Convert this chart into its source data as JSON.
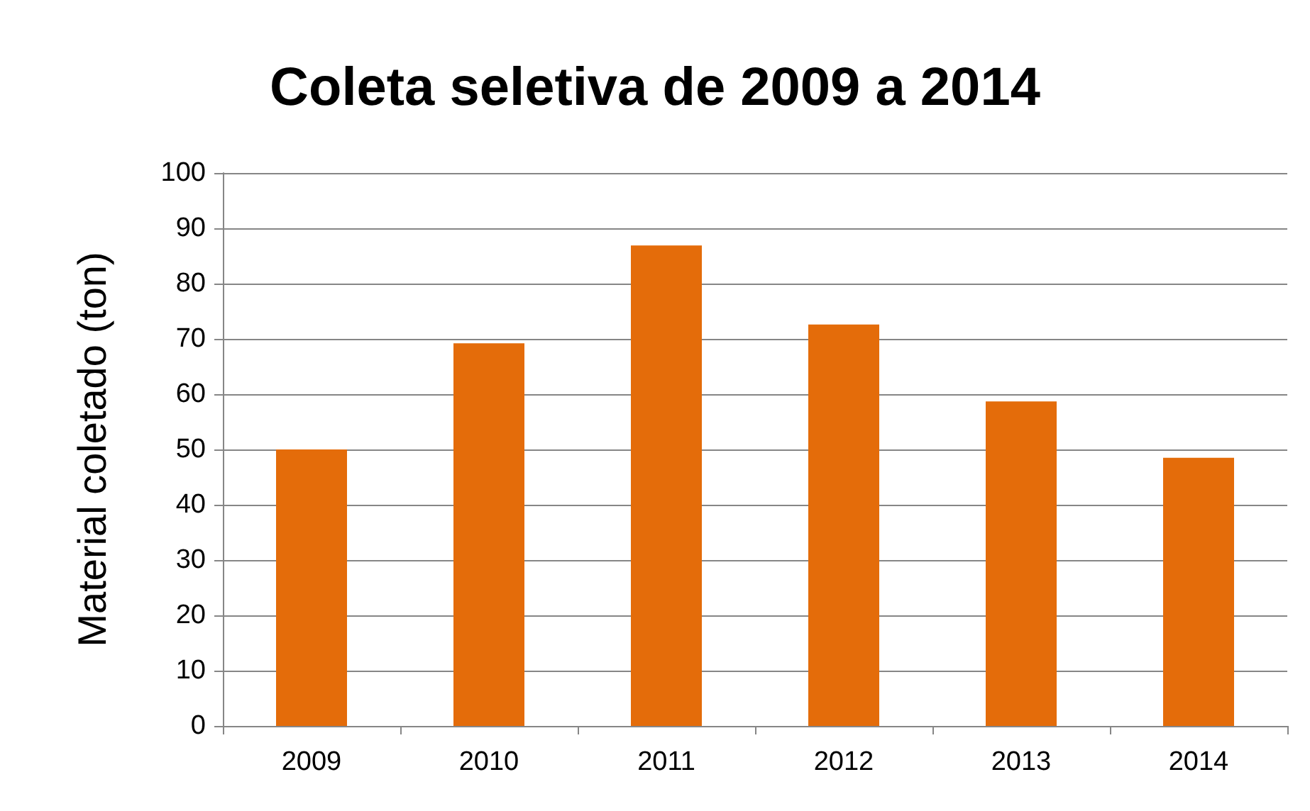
{
  "chart_data": {
    "type": "bar",
    "title": "Coleta seletiva de 2009 a 2014",
    "ylabel": "Material coletado (ton)",
    "categories": [
      "2009",
      "2010",
      "2011",
      "2012",
      "2013",
      "2014"
    ],
    "values": [
      50.0,
      69.2,
      86.9,
      72.6,
      58.7,
      48.5
    ],
    "color": "#e46c0a",
    "ylim": [
      0,
      100
    ],
    "yticks": [
      0,
      10,
      20,
      30,
      40,
      50,
      60,
      70,
      80,
      90,
      100
    ],
    "grid": "y"
  }
}
